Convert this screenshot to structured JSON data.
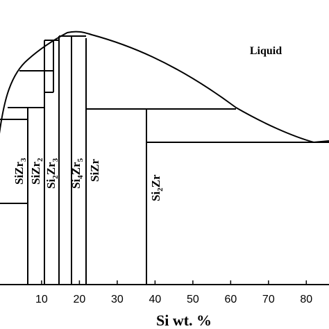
{
  "chart_data": {
    "type": "phase-diagram",
    "xlabel": "Si wt. %",
    "xlim": [
      -1,
      86
    ],
    "x_ticks": [
      10,
      20,
      30,
      40,
      50,
      60,
      70,
      80
    ],
    "region_labels": {
      "liquid": "Liquid"
    },
    "phases": [
      {
        "name": "SiZr3",
        "label_main": "SiZr",
        "sub": "3",
        "si_wt_pct": 9.3
      },
      {
        "name": "SiZr2",
        "label_main": "SiZr",
        "sub": "2",
        "si_wt_pct": 13.3
      },
      {
        "name": "Si2Zr3",
        "label_pre": "Si",
        "sub1": "2",
        "label_mid": "Zr",
        "sub2": "3",
        "si_wt_pct": 17.0
      },
      {
        "name": "Si4Zr5",
        "label_pre": "Si",
        "sub1": "4",
        "label_mid": "Zr",
        "sub2": "5",
        "si_wt_pct": 19.8
      },
      {
        "name": "SiZr",
        "label_main": "SiZr",
        "si_wt_pct": 23.5
      },
      {
        "name": "Si2Zr",
        "label_pre": "Si",
        "sub1": "2",
        "label_mid": "Zr",
        "si_wt_pct": 38.1
      }
    ],
    "liquidus_wt_pct": [
      -1,
      1,
      3,
      6,
      9,
      12,
      15,
      18,
      20,
      23,
      27,
      33,
      40,
      50,
      60,
      70,
      77,
      80,
      82,
      85
    ]
  }
}
